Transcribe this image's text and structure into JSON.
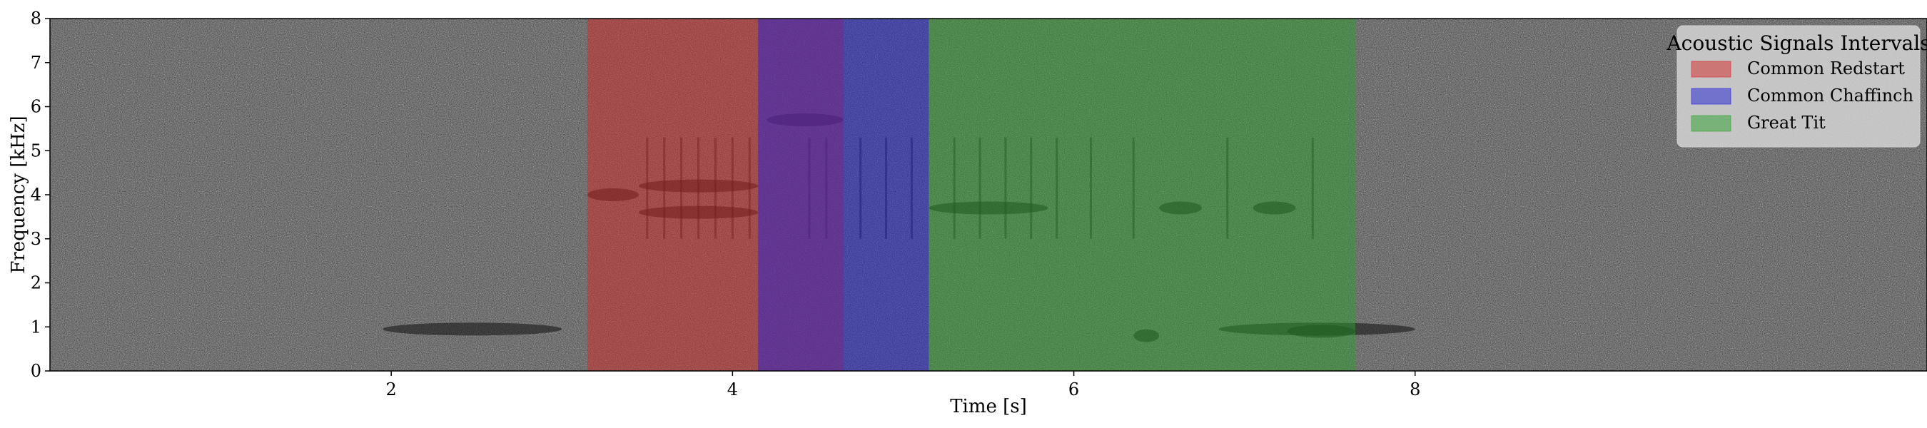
{
  "chart_data": {
    "type": "heatmap",
    "description_kind": "spectrogram",
    "xlabel": "Time [s]",
    "ylabel": "Frequency [kHz]",
    "xlim": [
      0.0,
      11.0
    ],
    "ylim": [
      0,
      8
    ],
    "xticks": [
      2,
      4,
      6,
      8
    ],
    "yticks": [
      0,
      1,
      2,
      3,
      4,
      5,
      6,
      7,
      8
    ],
    "grid": false,
    "legend": {
      "title": "Acoustic Signals Intervals",
      "placement": "top-right",
      "entries": [
        {
          "name": "Common Redstart",
          "color": "#d62728"
        },
        {
          "name": "Common Chaffinch",
          "color": "#1f1fd6"
        },
        {
          "name": "Great Tit",
          "color": "#2ca02c"
        }
      ]
    },
    "intervals": [
      {
        "species": "Common Redstart",
        "start": 3.15,
        "end": 4.65
      },
      {
        "species": "Common Chaffinch",
        "start": 4.15,
        "end": 5.15
      },
      {
        "species": "Great Tit",
        "start": 5.15,
        "end": 7.65
      }
    ],
    "spectrogram_background": "#5a5a5a",
    "calls": [
      {
        "t0": 1.95,
        "t1": 3.0,
        "f": 0.95,
        "kind": "band"
      },
      {
        "t0": 6.85,
        "t1": 8.0,
        "f": 0.95,
        "kind": "band"
      },
      {
        "t0": 3.15,
        "t1": 3.45,
        "f": 4.0,
        "kind": "band"
      },
      {
        "t0": 3.45,
        "t1": 4.15,
        "f": 3.6,
        "kind": "band"
      },
      {
        "t0": 3.45,
        "t1": 4.15,
        "f": 4.2,
        "kind": "band"
      },
      {
        "t0": 4.2,
        "t1": 4.65,
        "f": 5.7,
        "kind": "band"
      },
      {
        "t0": 5.15,
        "t1": 5.85,
        "f": 3.7,
        "kind": "band"
      },
      {
        "t0": 6.5,
        "t1": 6.75,
        "f": 3.7,
        "kind": "band"
      },
      {
        "t0": 7.05,
        "t1": 7.3,
        "f": 3.7,
        "kind": "band"
      },
      {
        "t0": 7.25,
        "t1": 7.65,
        "f": 0.9,
        "kind": "band"
      },
      {
        "t0": 6.35,
        "t1": 6.5,
        "f": 0.8,
        "kind": "band"
      }
    ],
    "clicks": [
      3.5,
      3.6,
      3.7,
      3.8,
      3.9,
      4.0,
      4.1,
      4.45,
      4.55,
      4.75,
      4.9,
      5.05,
      5.3,
      5.45,
      5.6,
      5.75,
      5.9,
      6.1,
      6.35,
      6.9,
      7.4
    ]
  }
}
